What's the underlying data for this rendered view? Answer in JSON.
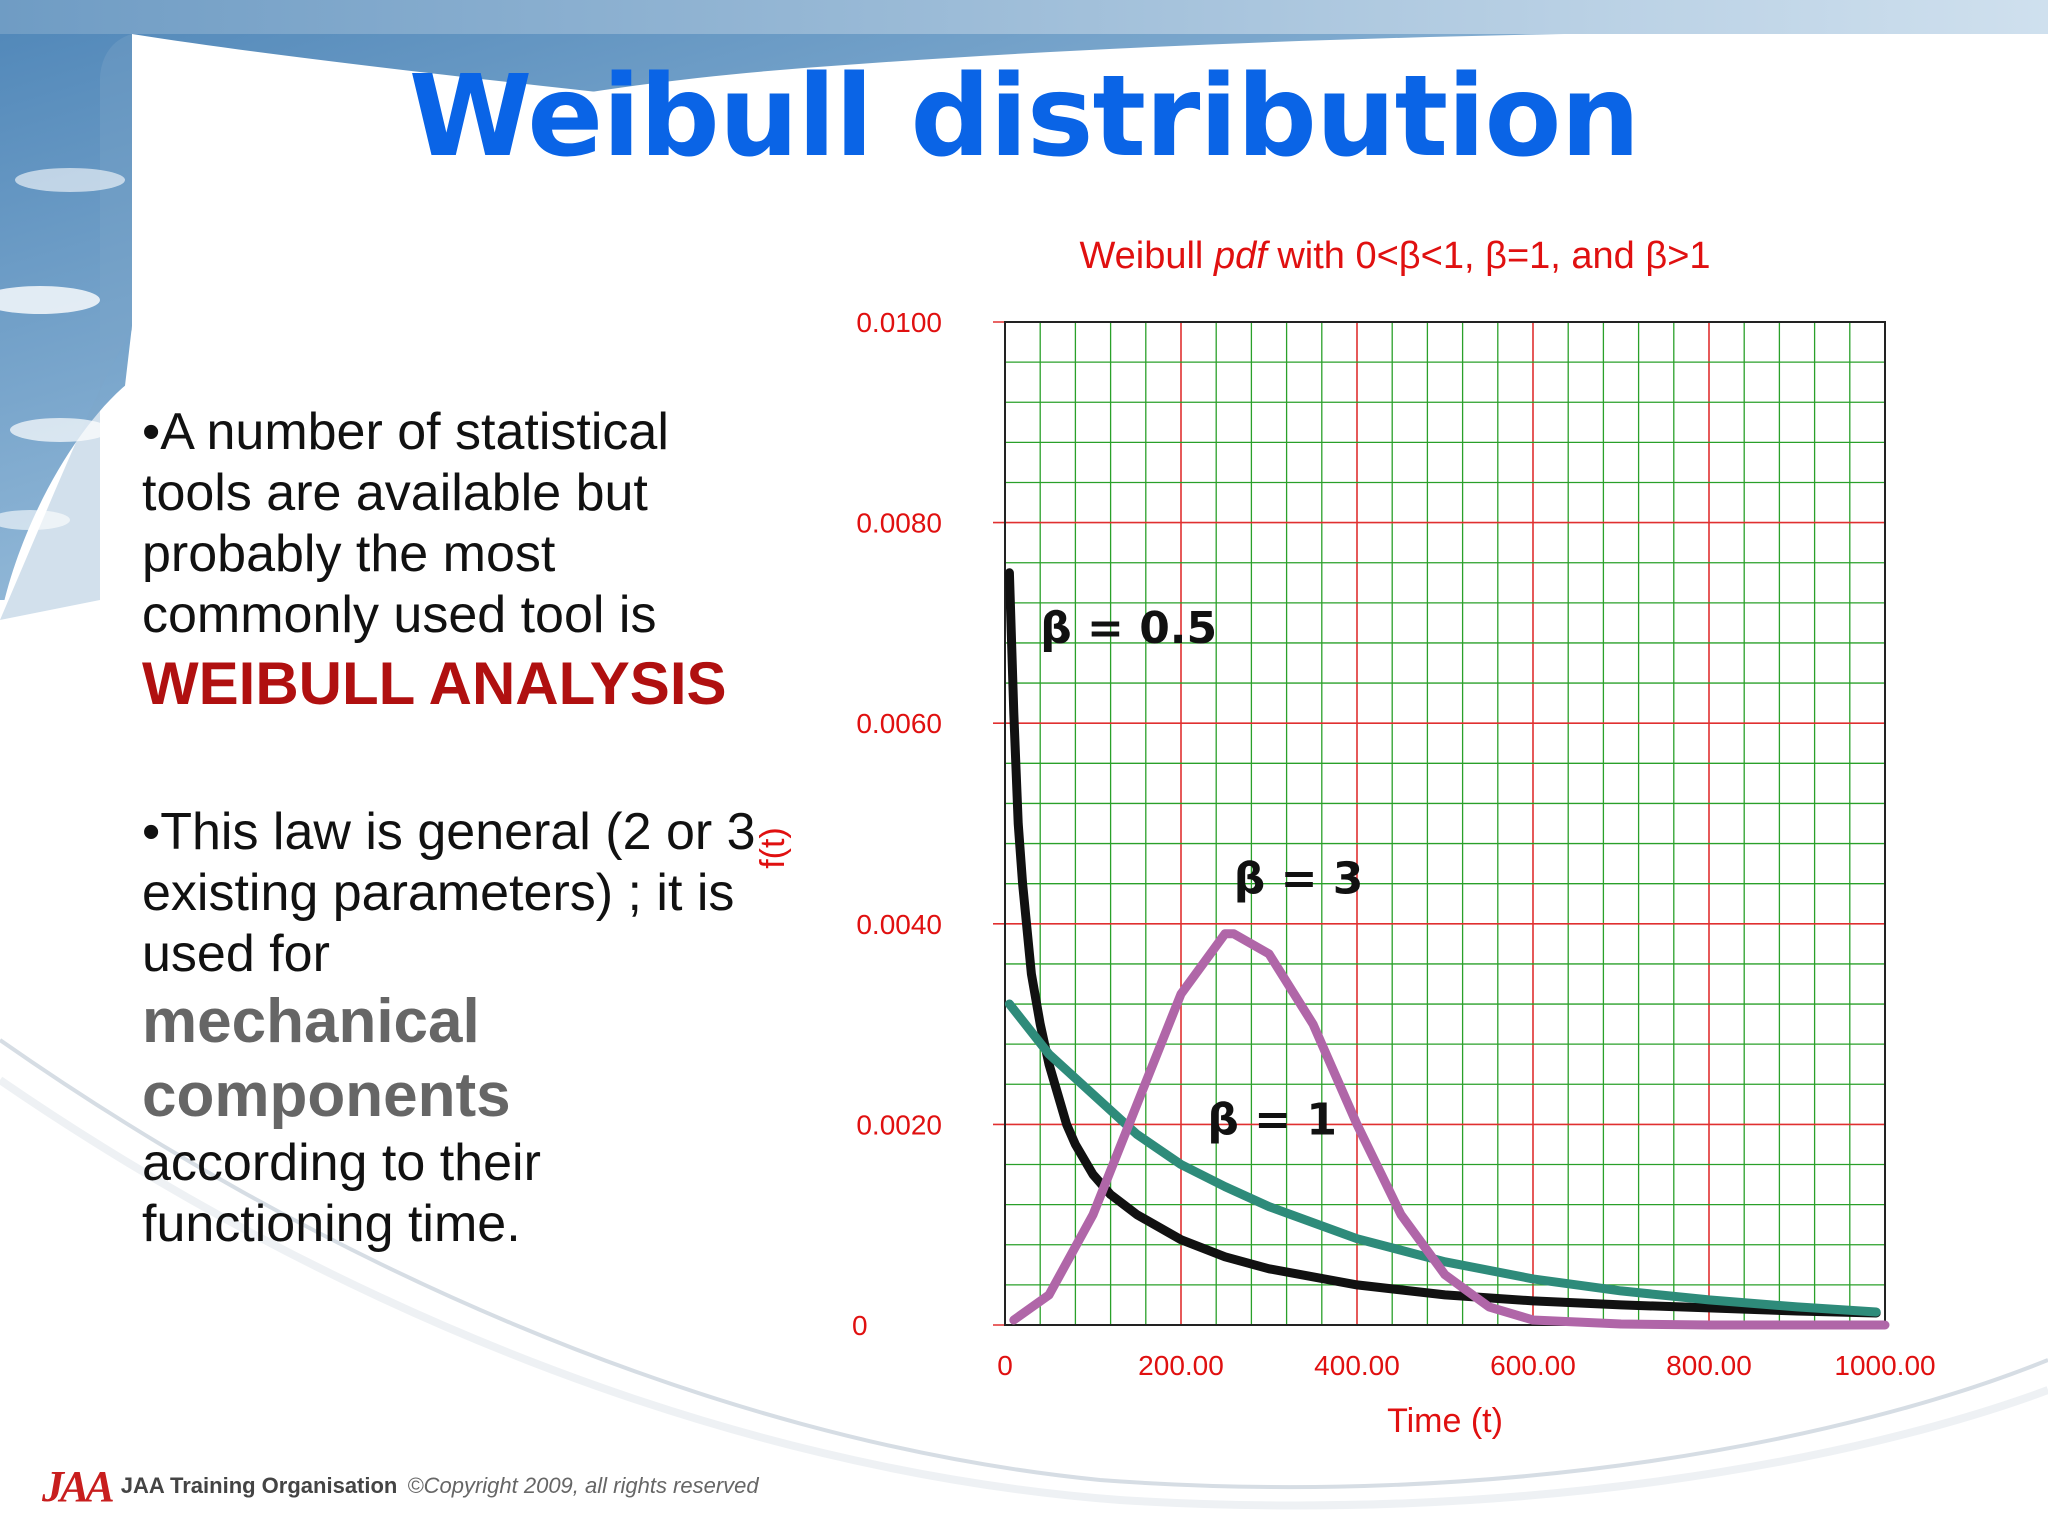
{
  "slide": {
    "title": "Weibull distribution",
    "bullet1": {
      "marker": "•",
      "text": "A number of statistical tools are available but probably the most commonly used tool is",
      "highlight": "WEIBULL ANALYSIS"
    },
    "bullet2": {
      "marker": "•",
      "text": "This law is general (2 or 3 existing parameters) ; it is used for",
      "highlight": "mechanical components",
      "text_after": "according to their functioning time."
    }
  },
  "footer": {
    "logo": "JAA",
    "org": "JAA Training Organisation",
    "copyright": "©Copyright 2009, all rights reserved"
  },
  "chart_data": {
    "type": "line",
    "title_parts": [
      "Weibull ",
      "pdf",
      " with 0<β<1, β=1, and β>1"
    ],
    "xlabel": "Time (t)",
    "ylabel": "f(t)",
    "xlim": [
      0,
      1000
    ],
    "ylim": [
      0,
      0.01
    ],
    "x_ticks": [
      0,
      200,
      400,
      600,
      800,
      1000
    ],
    "x_tick_labels": [
      "0",
      "200.00",
      "400.00",
      "600.00",
      "800.00",
      "1000.00"
    ],
    "y_ticks": [
      0,
      0.002,
      0.004,
      0.006,
      0.008,
      0.01
    ],
    "y_tick_labels": [
      "0",
      "0.0020",
      "0.0040",
      "0.0060",
      "0.0080",
      "0.0100"
    ],
    "grid": true,
    "colors": {
      "title": "#e01010",
      "axis_text": "#e01010",
      "minor_grid": "#2aa02a",
      "major_grid": "#e03030"
    },
    "series": [
      {
        "name": "β = 0.5",
        "color": "#111111",
        "x": [
          5,
          10,
          15,
          20,
          30,
          40,
          50,
          60,
          70,
          80,
          100,
          120,
          150,
          200,
          250,
          300,
          400,
          500,
          600,
          700,
          800,
          900,
          990
        ],
        "y": [
          0.0075,
          0.0061,
          0.005,
          0.0044,
          0.0035,
          0.003,
          0.0026,
          0.0023,
          0.002,
          0.0018,
          0.0015,
          0.0013,
          0.0011,
          0.00085,
          0.00068,
          0.00056,
          0.0004,
          0.0003,
          0.00024,
          0.0002,
          0.00017,
          0.00014,
          0.00012
        ]
      },
      {
        "name": "β = 1",
        "color": "#2e8b7a",
        "x": [
          5,
          50,
          100,
          150,
          200,
          250,
          300,
          400,
          500,
          600,
          700,
          800,
          900,
          990
        ],
        "y": [
          0.0032,
          0.0027,
          0.0023,
          0.0019,
          0.0016,
          0.00138,
          0.00118,
          0.00086,
          0.00063,
          0.00046,
          0.00034,
          0.00025,
          0.00018,
          0.00013
        ]
      },
      {
        "name": "β = 3",
        "color": "#b066a8",
        "x": [
          10,
          50,
          100,
          150,
          200,
          250,
          260,
          300,
          350,
          400,
          450,
          500,
          550,
          600,
          700,
          800,
          900,
          1000
        ],
        "y": [
          5e-05,
          0.0003,
          0.0011,
          0.0022,
          0.0033,
          0.0039,
          0.0039,
          0.0037,
          0.003,
          0.002,
          0.0011,
          0.0005,
          0.00018,
          5e-05,
          1e-05,
          0,
          0,
          0
        ]
      }
    ],
    "annotations": [
      {
        "text": "β = 0.5",
        "x": 40,
        "y": 0.0068
      },
      {
        "text": "β = 3",
        "x": 260,
        "y": 0.0043
      },
      {
        "text": "β = 1",
        "x": 230,
        "y": 0.0019
      }
    ]
  }
}
